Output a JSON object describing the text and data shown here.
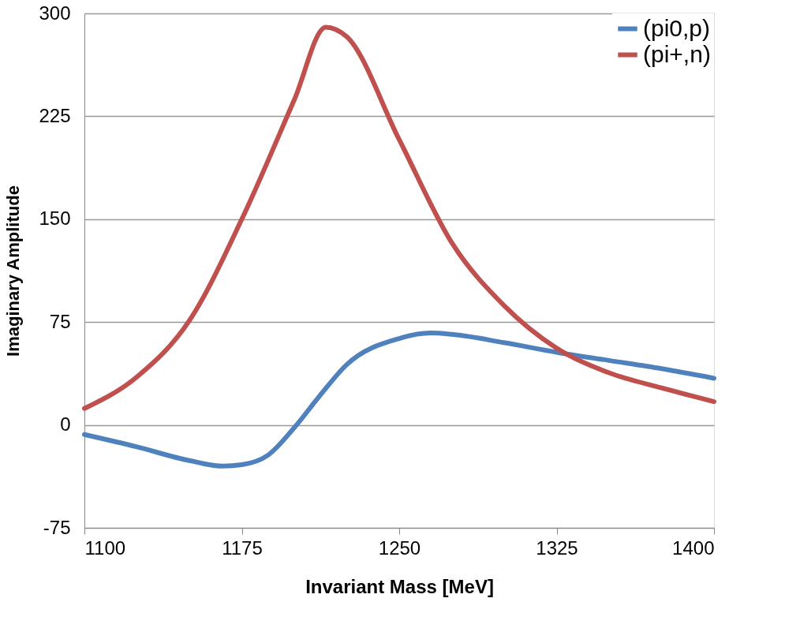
{
  "chart_data": {
    "type": "line",
    "xlabel": "Invariant Mass [MeV]",
    "ylabel": "Imaginary Amplitude",
    "xlim": [
      1100,
      1400
    ],
    "xticks": [
      1100,
      1175,
      1250,
      1325,
      1400
    ],
    "ylim": [
      -75,
      300
    ],
    "yticks": [
      -75,
      0,
      75,
      150,
      225,
      300
    ],
    "grid": "y",
    "legend": "top right",
    "line_style": "solid",
    "marker": "none",
    "series": [
      {
        "name": "(pi0,p)",
        "color": "#4f81bd",
        "x": [
          1100,
          1125,
          1150,
          1166,
          1175,
          1187.5,
          1200,
          1212,
          1225,
          1250,
          1265,
          1275,
          1300,
          1325,
          1350,
          1375,
          1400
        ],
        "values": [
          -7,
          -16,
          -26,
          -30,
          -29,
          -22,
          -2,
          21,
          44,
          63,
          67,
          66,
          60,
          53,
          47,
          41,
          34
        ]
      },
      {
        "name": "(pi+,n)",
        "color": "#c0504d",
        "x": [
          1100,
          1125,
          1150,
          1175,
          1200,
          1215,
          1225,
          1250,
          1275,
          1300,
          1325,
          1350,
          1375,
          1400
        ],
        "values": [
          12,
          35,
          76,
          150,
          237,
          290,
          283,
          208,
          133,
          87,
          56,
          38,
          27,
          17
        ]
      }
    ]
  }
}
